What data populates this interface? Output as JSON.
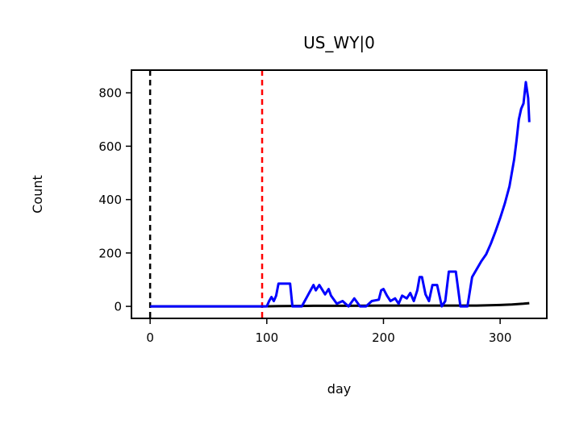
{
  "chart_data": {
    "type": "line",
    "title": "US_WY|0",
    "xlabel": "day",
    "ylabel": "Count",
    "xlim": [
      -16,
      340
    ],
    "ylim": [
      -45,
      885
    ],
    "xticks": [
      0,
      100,
      200,
      300
    ],
    "yticks": [
      0,
      200,
      400,
      600,
      800
    ],
    "grid": false,
    "legend": "none",
    "vlines": [
      {
        "x": 0,
        "color": "#000000",
        "style": "dashed"
      },
      {
        "x": 96,
        "color": "#ff0000",
        "style": "dashed"
      }
    ],
    "series": [
      {
        "color": "#000000",
        "x": [
          0,
          96,
          110,
          140,
          170,
          200,
          240,
          280,
          300,
          310,
          320,
          325
        ],
        "y": [
          0,
          0,
          1,
          2,
          2,
          3,
          3,
          3,
          5,
          7,
          10,
          12
        ]
      },
      {
        "color": "#0000ff",
        "x": [
          0,
          96,
          100,
          102,
          104,
          106,
          108,
          110,
          112,
          120,
          122,
          130,
          140,
          142,
          145,
          150,
          153,
          155,
          160,
          165,
          170,
          175,
          180,
          185,
          190,
          196,
          198,
          200,
          203,
          206,
          210,
          213,
          216,
          220,
          223,
          226,
          229,
          231,
          233,
          236,
          239,
          242,
          246,
          250,
          253,
          256,
          258,
          262,
          266,
          268,
          272,
          276,
          280,
          284,
          288,
          292,
          296,
          300,
          304,
          308,
          312,
          314,
          316,
          318,
          320,
          322,
          324,
          325
        ],
        "y": [
          0,
          0,
          0,
          20,
          35,
          20,
          40,
          85,
          85,
          85,
          0,
          0,
          80,
          60,
          80,
          45,
          65,
          40,
          10,
          20,
          0,
          30,
          0,
          0,
          20,
          25,
          60,
          65,
          40,
          20,
          30,
          10,
          40,
          30,
          50,
          20,
          60,
          110,
          110,
          45,
          20,
          80,
          80,
          0,
          20,
          130,
          130,
          130,
          0,
          0,
          0,
          110,
          140,
          170,
          195,
          235,
          280,
          330,
          385,
          450,
          550,
          620,
          700,
          740,
          760,
          840,
          780,
          690
        ]
      }
    ]
  }
}
